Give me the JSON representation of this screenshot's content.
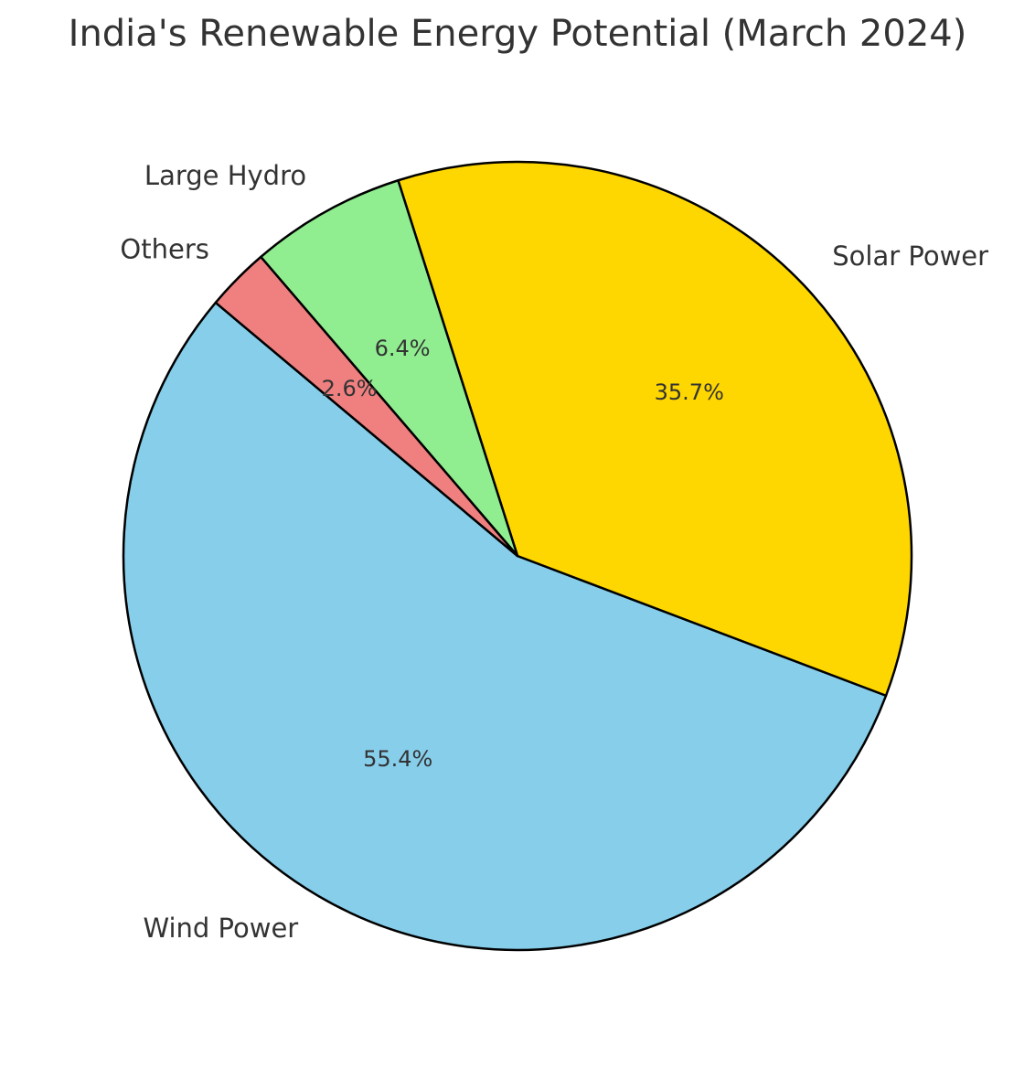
{
  "chart_data": {
    "type": "pie",
    "title": "India's Renewable Energy Potential (March 2024)",
    "categories": [
      "Wind Power",
      "Solar Power",
      "Large Hydro",
      "Others"
    ],
    "values": [
      55.4,
      35.7,
      6.4,
      2.6
    ],
    "value_labels": [
      "55.4%",
      "35.7%",
      "6.4%",
      "2.6%"
    ],
    "colors": [
      "#87CEEB",
      "#FFD700",
      "#90EE90",
      "#F08080"
    ],
    "start_angle_deg": 140,
    "edge_color": "#000000",
    "autopct": "%1.1f%%",
    "legend": false
  }
}
